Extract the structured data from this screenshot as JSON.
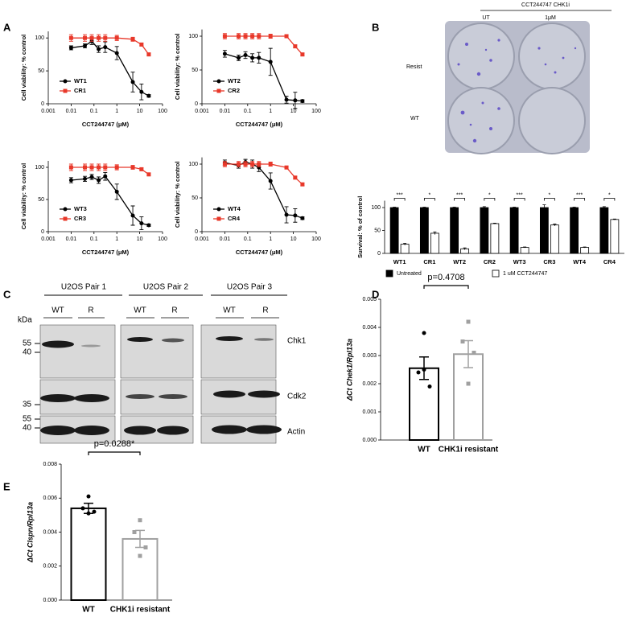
{
  "panel_labels": [
    "A",
    "B",
    "C",
    "D",
    "E"
  ],
  "chart_data": [
    {
      "type": "line",
      "x_label": "CCT244747 (μM)",
      "y_label": "Cell viability: % control",
      "log_x": true,
      "xlim": [
        0.001,
        100
      ],
      "xticks": [
        0.001,
        0.01,
        0.1,
        1,
        10,
        100
      ],
      "ylim": [
        0,
        110
      ],
      "yticks": [
        0,
        50,
        100
      ],
      "legend": "lower left",
      "x": [
        0.01,
        0.04,
        0.08,
        0.16,
        0.31,
        1,
        5,
        12,
        25
      ],
      "series": [
        {
          "name": "WT1",
          "color": "#000000",
          "marker": "circle",
          "values": [
            85,
            88,
            95,
            83,
            86,
            77,
            33,
            18,
            12
          ],
          "errors": [
            3,
            3,
            5,
            5,
            8,
            10,
            15,
            12,
            2
          ]
        },
        {
          "name": "CR1",
          "color": "#e8382a",
          "marker": "square",
          "values": [
            100,
            100,
            100,
            100,
            100,
            100,
            98,
            90,
            75
          ],
          "errors": [
            5,
            5,
            5,
            5,
            5,
            4,
            3,
            2,
            2
          ]
        }
      ]
    },
    {
      "type": "line",
      "x_label": "CCT244747 (μM)",
      "y_label": "Cell viability: % control",
      "log_x": true,
      "xlim": [
        0.001,
        100
      ],
      "xticks": [
        0.001,
        0.01,
        0.1,
        1,
        10,
        100
      ],
      "ylim": [
        0,
        110
      ],
      "yticks": [
        0,
        50,
        100
      ],
      "legend": "lower left",
      "x": [
        0.01,
        0.04,
        0.08,
        0.16,
        0.31,
        1,
        5,
        12,
        25
      ],
      "series": [
        {
          "name": "WT2",
          "color": "#000000",
          "marker": "circle",
          "values": [
            74,
            68,
            72,
            68,
            68,
            62,
            6,
            5,
            4
          ],
          "errors": [
            5,
            4,
            5,
            6,
            8,
            20,
            5,
            12,
            2
          ]
        },
        {
          "name": "CR2",
          "color": "#e8382a",
          "marker": "square",
          "values": [
            100,
            100,
            100,
            100,
            100,
            100,
            100,
            85,
            73
          ],
          "errors": [
            4,
            4,
            4,
            4,
            4,
            3,
            2,
            2,
            2
          ]
        }
      ]
    },
    {
      "type": "line",
      "x_label": "CCT244747 (μM)",
      "y_label": "Cell viability: % control",
      "log_x": true,
      "xlim": [
        0.001,
        100
      ],
      "xticks": [
        0.001,
        0.01,
        0.1,
        1,
        10,
        100
      ],
      "ylim": [
        0,
        110
      ],
      "yticks": [
        0,
        50,
        100
      ],
      "legend": "lower left",
      "x": [
        0.01,
        0.04,
        0.08,
        0.16,
        0.31,
        1,
        5,
        12,
        25
      ],
      "series": [
        {
          "name": "WT3",
          "color": "#000000",
          "marker": "circle",
          "values": [
            80,
            82,
            85,
            80,
            86,
            62,
            25,
            13,
            10
          ],
          "errors": [
            4,
            4,
            4,
            5,
            6,
            12,
            15,
            10,
            2
          ]
        },
        {
          "name": "CR3",
          "color": "#e8382a",
          "marker": "square",
          "values": [
            100,
            100,
            100,
            100,
            100,
            100,
            100,
            97,
            89
          ],
          "errors": [
            5,
            5,
            5,
            5,
            5,
            4,
            3,
            2,
            2
          ]
        }
      ]
    },
    {
      "type": "line",
      "x_label": "CCT244747 (μM)",
      "y_label": "Cell viability: % control",
      "log_x": true,
      "xlim": [
        0.001,
        100
      ],
      "xticks": [
        0.001,
        0.01,
        0.1,
        1,
        10,
        100
      ],
      "ylim": [
        0,
        110
      ],
      "yticks": [
        0,
        50,
        100
      ],
      "legend": "lower left",
      "x": [
        0.01,
        0.04,
        0.08,
        0.16,
        0.31,
        1,
        5,
        12,
        25
      ],
      "series": [
        {
          "name": "WT4",
          "color": "#000000",
          "marker": "circle",
          "values": [
            102,
            98,
            103,
            100,
            95,
            75,
            25,
            24,
            20
          ],
          "errors": [
            4,
            4,
            4,
            6,
            6,
            12,
            12,
            10,
            2
          ]
        },
        {
          "name": "CR4",
          "color": "#e8382a",
          "marker": "square",
          "values": [
            100,
            100,
            100,
            100,
            100,
            100,
            95,
            80,
            70
          ],
          "errors": [
            4,
            4,
            4,
            4,
            4,
            3,
            2,
            2,
            2
          ]
        }
      ]
    },
    {
      "type": "bar",
      "y_label": "Survival: % of control",
      "ylim": [
        0,
        115
      ],
      "yticks": [
        0,
        50,
        100
      ],
      "legend": "bottom",
      "categories": [
        "WT1",
        "CR1",
        "WT2",
        "CR2",
        "WT3",
        "CR3",
        "WT4",
        "CR4"
      ],
      "series": [
        {
          "name": "Untreated",
          "color": "#000000",
          "values": [
            100,
            100,
            100,
            100,
            100,
            100,
            100,
            100
          ],
          "errors": [
            1,
            1,
            1,
            2,
            1,
            6,
            1,
            2
          ]
        },
        {
          "name": "1 uM CCT244747",
          "color": "#ffffff",
          "values": [
            20,
            44,
            10,
            65,
            13,
            62,
            13,
            74
          ],
          "errors": [
            2,
            3,
            2,
            1,
            1,
            2,
            1,
            1
          ]
        }
      ],
      "annotations": [
        "***",
        "*",
        "***",
        "*",
        "***",
        "*",
        "***",
        "*"
      ]
    },
    {
      "type": "bar",
      "y_label": "ΔCt Chek1/Rpl13a",
      "categories": [
        "WT",
        "CHK1i resistant"
      ],
      "colors": [
        "#000000",
        "#a0a0a0"
      ],
      "values": [
        0.00255,
        0.00305
      ],
      "errors": [
        0.0004,
        0.00048
      ],
      "points": [
        [
          0.0038,
          0.0024,
          0.0019,
          0.0025
        ],
        [
          0.0042,
          0.0035,
          0.0031,
          0.002
        ]
      ],
      "ylim": [
        0,
        0.005
      ],
      "yticks": [
        {
          "value": 0,
          "label": "0.000"
        },
        {
          "value": 0.001,
          "label": "0.001"
        },
        {
          "value": 0.002,
          "label": "0.002"
        },
        {
          "value": 0.003,
          "label": "0.003"
        },
        {
          "value": 0.004,
          "label": "0.004"
        },
        {
          "value": 0.005,
          "label": "0.005"
        }
      ],
      "annotation": "p=0.4708"
    },
    {
      "type": "bar",
      "y_label": "ΔCt Clspn/Rpl13a",
      "categories": [
        "WT",
        "CHK1i resistant"
      ],
      "colors": [
        "#000000",
        "#a0a0a0"
      ],
      "values": [
        0.0054,
        0.0036
      ],
      "errors": [
        0.0003,
        0.0005
      ],
      "points": [
        [
          0.0061,
          0.0054,
          0.0052,
          0.0051
        ],
        [
          0.0047,
          0.004,
          0.0031,
          0.0026
        ]
      ],
      "ylim": [
        0,
        0.008
      ],
      "yticks": [
        {
          "value": 0,
          "label": "0.000"
        },
        {
          "value": 0.002,
          "label": "0.002"
        },
        {
          "value": 0.004,
          "label": "0.004"
        },
        {
          "value": 0.006,
          "label": "0.006"
        },
        {
          "value": 0.008,
          "label": "0.008"
        }
      ],
      "annotation": "p=0.0288*"
    }
  ],
  "plate_image": {
    "title": "CCT244747 CHK1i",
    "columns": [
      "UT",
      "1μM"
    ],
    "rows": [
      "Resist",
      "WT"
    ]
  },
  "western_blot": {
    "groups": [
      {
        "title": "U2OS Pair 1",
        "lanes": [
          "WT",
          "R"
        ]
      },
      {
        "title": "U2OS Pair 2",
        "lanes": [
          "WT",
          "R"
        ]
      },
      {
        "title": "U2OS Pair 3",
        "lanes": [
          "WT",
          "R"
        ]
      }
    ],
    "unit": "kDa",
    "markers": [
      55,
      40,
      35,
      55,
      40
    ],
    "rows": [
      "Chk1",
      "Cdk2",
      "Actin"
    ]
  }
}
